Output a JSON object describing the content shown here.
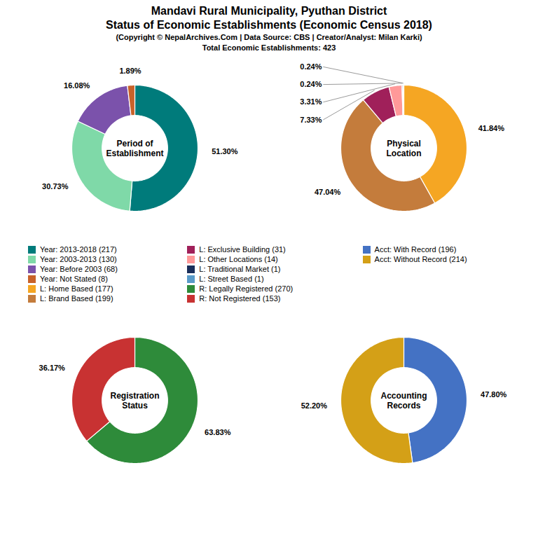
{
  "title": [
    "Mandavi Rural Municipality, Pyuthan District",
    "Status of Economic Establishments (Economic Census 2018)"
  ],
  "subtitle": [
    "(Copyright © NepalArchives.Com | Data Source: CBS | Creator/Analyst: Milan Karki)",
    "Total Economic Establishments: 423"
  ],
  "chart_data": [
    {
      "type": "donut",
      "title": "Period of\nEstablishment",
      "categories": [
        "Year: 2013-2018 (217)",
        "Year: 2003-2013 (130)",
        "Year: Before 2003 (68)",
        "Year: Not Stated (8)"
      ],
      "values": [
        51.3,
        30.73,
        16.08,
        1.89
      ],
      "value_labels": [
        "51.30%",
        "30.73%",
        "16.08%",
        "1.89%"
      ],
      "colors": [
        "#007B7B",
        "#7FD9A8",
        "#7B52AB",
        "#C8622A"
      ],
      "data_labels": true
    },
    {
      "type": "donut",
      "title": "Physical\nLocation",
      "categories": [
        "L: Home Based (177)",
        "L: Brand Based (199)",
        "L: Exclusive Building (31)",
        "L: Other Locations (14)",
        "L: Traditional Market (1)",
        "L: Street Based (1)"
      ],
      "values": [
        41.84,
        47.04,
        7.33,
        3.31,
        0.24,
        0.24
      ],
      "value_labels": [
        "41.84%",
        "47.04%",
        "7.33%",
        "3.31%",
        "0.24%",
        "0.24%"
      ],
      "colors": [
        "#F5A623",
        "#C47C3C",
        "#A0205A",
        "#FF9999",
        "#1A2E5A",
        "#5A9BC9"
      ],
      "data_labels": true
    },
    {
      "type": "donut",
      "title": "Registration\nStatus",
      "categories": [
        "R: Legally Registered (270)",
        "R: Not Registered (153)"
      ],
      "values": [
        63.83,
        36.17
      ],
      "value_labels": [
        "63.83%",
        "36.17%"
      ],
      "colors": [
        "#2E8B3A",
        "#C83232"
      ],
      "data_labels": true
    },
    {
      "type": "donut",
      "title": "Accounting\nRecords",
      "categories": [
        "Acct: With Record (196)",
        "Acct: Without Record (214)"
      ],
      "values": [
        47.8,
        52.2
      ],
      "value_labels": [
        "47.80%",
        "52.20%"
      ],
      "colors": [
        "#4472C4",
        "#D4A017"
      ],
      "data_labels": true
    }
  ]
}
